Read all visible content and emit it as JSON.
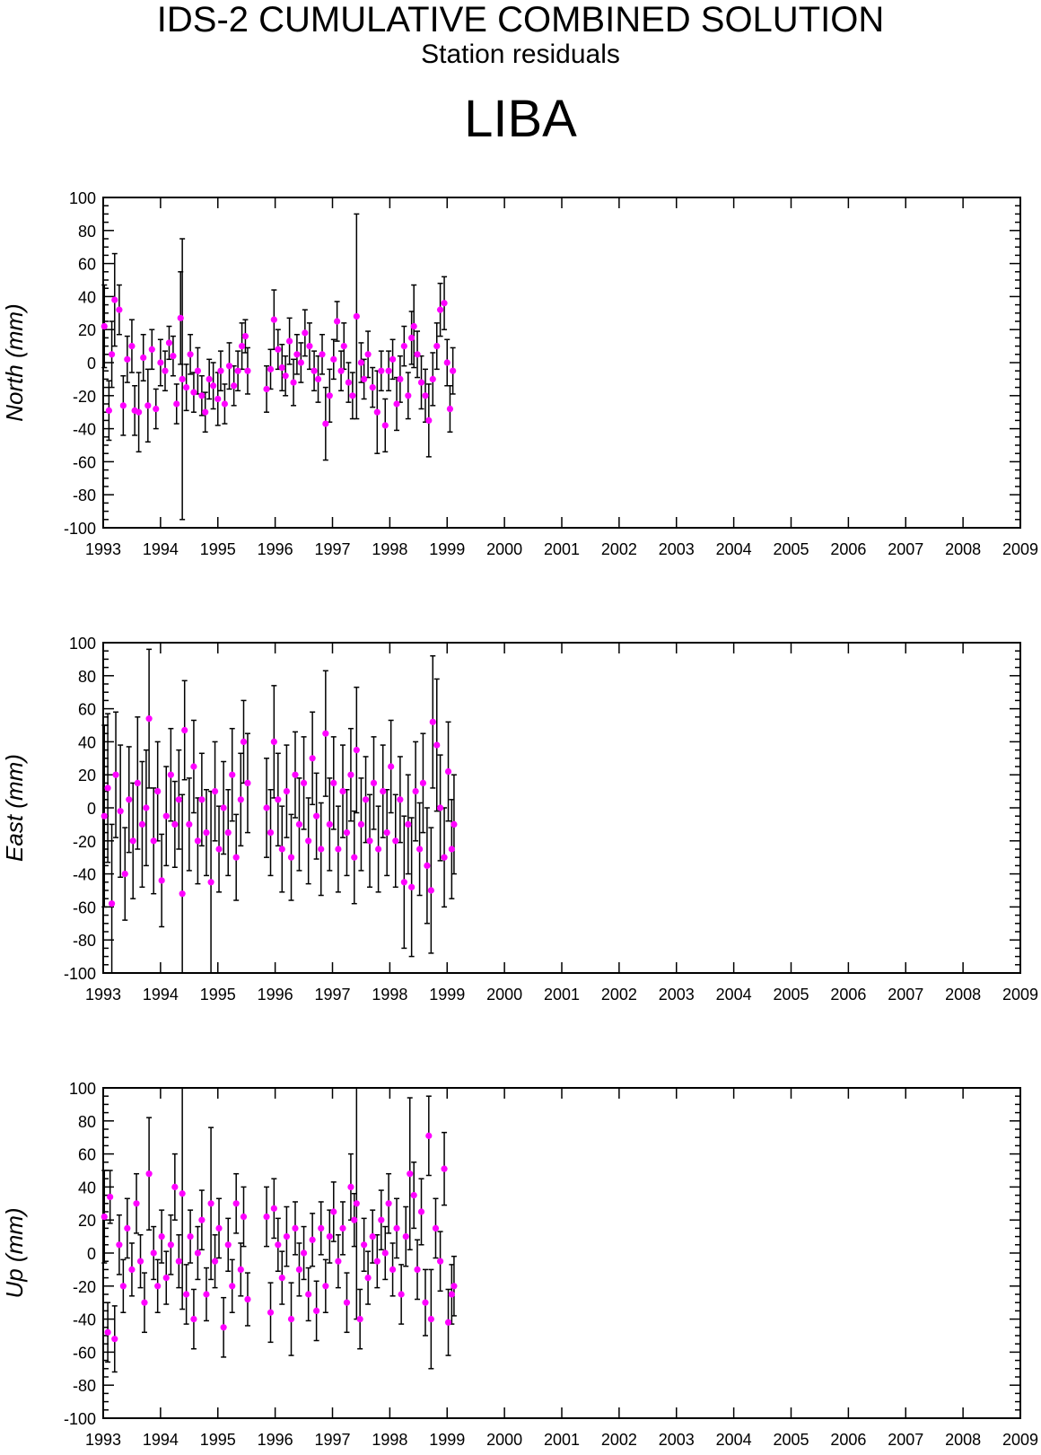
{
  "header": {
    "title": "IDS-2 CUMULATIVE COMBINED SOLUTION",
    "subtitle": "Station residuals",
    "station": "LIBA"
  },
  "colors": {
    "points": "#ff00ff",
    "error_bars": "#000000",
    "axes": "#000000"
  },
  "chart_data": [
    {
      "type": "scatter",
      "ylabel": "North (mm)",
      "xlim": [
        1993,
        2009
      ],
      "ylim": [
        -100,
        100
      ],
      "x_ticks": [
        "1993",
        "1994",
        "1995",
        "1996",
        "1997",
        "1998",
        "1999",
        "2000",
        "2001",
        "2002",
        "2003",
        "2004",
        "2005",
        "2006",
        "2007",
        "2008",
        "2009"
      ],
      "y_ticks": [
        "100",
        "80",
        "60",
        "40",
        "20",
        "0",
        "-20",
        "-40",
        "-60",
        "-80",
        "-100"
      ],
      "points": [
        [
          1993.02,
          22,
          25
        ],
        [
          1993.1,
          -29,
          18
        ],
        [
          1993.15,
          5,
          20
        ],
        [
          1993.2,
          38,
          28
        ],
        [
          1993.28,
          32,
          15
        ],
        [
          1993.35,
          -26,
          18
        ],
        [
          1993.42,
          2,
          14
        ],
        [
          1993.5,
          10,
          16
        ],
        [
          1993.55,
          -29,
          15
        ],
        [
          1993.62,
          -30,
          24
        ],
        [
          1993.7,
          3,
          14
        ],
        [
          1993.78,
          -26,
          22
        ],
        [
          1993.85,
          8,
          12
        ],
        [
          1993.92,
          -28,
          12
        ],
        [
          1994.0,
          0,
          14
        ],
        [
          1994.08,
          -5,
          12
        ],
        [
          1994.15,
          12,
          10
        ],
        [
          1994.22,
          4,
          12
        ],
        [
          1994.28,
          -25,
          12
        ],
        [
          1994.35,
          27,
          28
        ],
        [
          1994.38,
          -10,
          85
        ],
        [
          1994.45,
          -15,
          14
        ],
        [
          1994.52,
          5,
          12
        ],
        [
          1994.58,
          -18,
          12
        ],
        [
          1994.65,
          -5,
          14
        ],
        [
          1994.72,
          -20,
          12
        ],
        [
          1994.78,
          -30,
          12
        ],
        [
          1994.85,
          -10,
          12
        ],
        [
          1994.92,
          -14,
          14
        ],
        [
          1995.0,
          -22,
          16
        ],
        [
          1995.05,
          -5,
          12
        ],
        [
          1995.12,
          -25,
          12
        ],
        [
          1995.2,
          -2,
          14
        ],
        [
          1995.28,
          -14,
          12
        ],
        [
          1995.35,
          -5,
          12
        ],
        [
          1995.42,
          10,
          14
        ],
        [
          1995.48,
          16,
          10
        ],
        [
          1995.52,
          -5,
          14
        ],
        [
          1995.85,
          -16,
          14
        ],
        [
          1995.92,
          -4,
          12
        ],
        [
          1995.98,
          26,
          18
        ],
        [
          1996.05,
          8,
          12
        ],
        [
          1996.12,
          -3,
          14
        ],
        [
          1996.18,
          -8,
          12
        ],
        [
          1996.25,
          13,
          14
        ],
        [
          1996.32,
          -12,
          14
        ],
        [
          1996.38,
          5,
          12
        ],
        [
          1996.45,
          0,
          12
        ],
        [
          1996.52,
          18,
          14
        ],
        [
          1996.6,
          10,
          14
        ],
        [
          1996.68,
          -5,
          12
        ],
        [
          1996.75,
          -10,
          14
        ],
        [
          1996.82,
          5,
          12
        ],
        [
          1996.88,
          -37,
          22
        ],
        [
          1996.95,
          -20,
          16
        ],
        [
          1997.02,
          2,
          12
        ],
        [
          1997.08,
          25,
          12
        ],
        [
          1997.15,
          -5,
          12
        ],
        [
          1997.2,
          10,
          14
        ],
        [
          1997.28,
          -12,
          12
        ],
        [
          1997.35,
          -20,
          14
        ],
        [
          1997.42,
          28,
          62
        ],
        [
          1997.5,
          0,
          12
        ],
        [
          1997.55,
          -10,
          12
        ],
        [
          1997.62,
          5,
          14
        ],
        [
          1997.7,
          -15,
          12
        ],
        [
          1997.78,
          -30,
          25
        ],
        [
          1997.85,
          -5,
          12
        ],
        [
          1997.92,
          -38,
          16
        ],
        [
          1997.98,
          -5,
          12
        ],
        [
          1998.05,
          2,
          12
        ],
        [
          1998.12,
          -25,
          16
        ],
        [
          1998.18,
          -10,
          14
        ],
        [
          1998.25,
          10,
          12
        ],
        [
          1998.32,
          -20,
          14
        ],
        [
          1998.38,
          15,
          16
        ],
        [
          1998.42,
          22,
          25
        ],
        [
          1998.48,
          5,
          14
        ],
        [
          1998.55,
          -12,
          16
        ],
        [
          1998.62,
          -20,
          16
        ],
        [
          1998.68,
          -35,
          22
        ],
        [
          1998.75,
          -10,
          16
        ],
        [
          1998.82,
          10,
          14
        ],
        [
          1998.88,
          32,
          16
        ],
        [
          1998.95,
          36,
          16
        ],
        [
          1999.0,
          0,
          14
        ],
        [
          1999.05,
          -28,
          14
        ],
        [
          1999.1,
          -5,
          14
        ]
      ]
    },
    {
      "type": "scatter",
      "ylabel": "East (mm)",
      "xlim": [
        1993,
        2009
      ],
      "ylim": [
        -100,
        100
      ],
      "x_ticks": [
        "1993",
        "1994",
        "1995",
        "1996",
        "1997",
        "1998",
        "1999",
        "2000",
        "2001",
        "2002",
        "2003",
        "2004",
        "2005",
        "2006",
        "2007",
        "2008",
        "2009"
      ],
      "y_ticks": [
        "100",
        "80",
        "60",
        "40",
        "20",
        "0",
        "-20",
        "-40",
        "-60",
        "-80",
        "-100"
      ],
      "points": [
        [
          1993.02,
          -5,
          55
        ],
        [
          1993.08,
          12,
          45
        ],
        [
          1993.15,
          -58,
          48
        ],
        [
          1993.22,
          20,
          38
        ],
        [
          1993.3,
          -2,
          40
        ],
        [
          1993.38,
          -40,
          28
        ],
        [
          1993.45,
          5,
          32
        ],
        [
          1993.52,
          -20,
          35
        ],
        [
          1993.6,
          15,
          40
        ],
        [
          1993.68,
          -10,
          38
        ],
        [
          1993.75,
          0,
          35
        ],
        [
          1993.8,
          54,
          42
        ],
        [
          1993.88,
          -20,
          32
        ],
        [
          1993.95,
          10,
          30
        ],
        [
          1994.02,
          -44,
          28
        ],
        [
          1994.1,
          -5,
          30
        ],
        [
          1994.18,
          20,
          28
        ],
        [
          1994.25,
          -10,
          26
        ],
        [
          1994.32,
          5,
          30
        ],
        [
          1994.38,
          -52,
          60
        ],
        [
          1994.42,
          47,
          30
        ],
        [
          1994.5,
          -10,
          28
        ],
        [
          1994.58,
          25,
          28
        ],
        [
          1994.65,
          -20,
          26
        ],
        [
          1994.72,
          5,
          28
        ],
        [
          1994.8,
          -15,
          26
        ],
        [
          1994.88,
          -45,
          55
        ],
        [
          1994.95,
          10,
          30
        ],
        [
          1995.02,
          -25,
          26
        ],
        [
          1995.1,
          0,
          28
        ],
        [
          1995.18,
          -15,
          26
        ],
        [
          1995.25,
          20,
          28
        ],
        [
          1995.32,
          -30,
          26
        ],
        [
          1995.4,
          5,
          28
        ],
        [
          1995.45,
          40,
          25
        ],
        [
          1995.52,
          15,
          30
        ],
        [
          1995.85,
          0,
          30
        ],
        [
          1995.92,
          -15,
          26
        ],
        [
          1995.98,
          40,
          34
        ],
        [
          1996.05,
          5,
          28
        ],
        [
          1996.12,
          -25,
          26
        ],
        [
          1996.2,
          10,
          28
        ],
        [
          1996.28,
          -30,
          26
        ],
        [
          1996.35,
          20,
          26
        ],
        [
          1996.42,
          -10,
          28
        ],
        [
          1996.5,
          15,
          28
        ],
        [
          1996.58,
          -20,
          26
        ],
        [
          1996.65,
          30,
          28
        ],
        [
          1996.72,
          -5,
          26
        ],
        [
          1996.8,
          -25,
          28
        ],
        [
          1996.88,
          45,
          38
        ],
        [
          1996.95,
          -10,
          28
        ],
        [
          1997.02,
          15,
          28
        ],
        [
          1997.1,
          -25,
          26
        ],
        [
          1997.18,
          10,
          28
        ],
        [
          1997.25,
          -15,
          26
        ],
        [
          1997.32,
          20,
          28
        ],
        [
          1997.38,
          -30,
          28
        ],
        [
          1997.42,
          35,
          38
        ],
        [
          1997.5,
          -10,
          28
        ],
        [
          1997.58,
          5,
          26
        ],
        [
          1997.65,
          -20,
          28
        ],
        [
          1997.72,
          15,
          28
        ],
        [
          1997.8,
          -25,
          26
        ],
        [
          1997.88,
          10,
          28
        ],
        [
          1997.95,
          -15,
          26
        ],
        [
          1998.02,
          25,
          28
        ],
        [
          1998.1,
          -20,
          28
        ],
        [
          1998.18,
          5,
          26
        ],
        [
          1998.25,
          -45,
          40
        ],
        [
          1998.32,
          -10,
          30
        ],
        [
          1998.38,
          -48,
          42
        ],
        [
          1998.45,
          10,
          30
        ],
        [
          1998.52,
          -25,
          28
        ],
        [
          1998.58,
          15,
          30
        ],
        [
          1998.65,
          -35,
          35
        ],
        [
          1998.72,
          -50,
          38
        ],
        [
          1998.75,
          52,
          40
        ],
        [
          1998.82,
          38,
          40
        ],
        [
          1998.88,
          0,
          32
        ],
        [
          1998.95,
          -30,
          30
        ],
        [
          1999.02,
          22,
          30
        ],
        [
          1999.08,
          -25,
          30
        ],
        [
          1999.12,
          -10,
          30
        ]
      ]
    },
    {
      "type": "scatter",
      "ylabel": "Up (mm)",
      "xlim": [
        1993,
        2009
      ],
      "ylim": [
        -100,
        100
      ],
      "x_ticks": [
        "1993",
        "1994",
        "1995",
        "1996",
        "1997",
        "1998",
        "1999",
        "2000",
        "2001",
        "2002",
        "2003",
        "2004",
        "2005",
        "2006",
        "2007",
        "2008",
        "2009"
      ],
      "y_ticks": [
        "100",
        "80",
        "60",
        "40",
        "20",
        "0",
        "-20",
        "-40",
        "-60",
        "-80",
        "-100"
      ],
      "points": [
        [
          1993.02,
          22,
          28
        ],
        [
          1993.08,
          -48,
          18
        ],
        [
          1993.12,
          34,
          16
        ],
        [
          1993.2,
          -52,
          20
        ],
        [
          1993.28,
          5,
          18
        ],
        [
          1993.35,
          -20,
          16
        ],
        [
          1993.42,
          15,
          18
        ],
        [
          1993.5,
          -10,
          16
        ],
        [
          1993.58,
          30,
          18
        ],
        [
          1993.65,
          -5,
          16
        ],
        [
          1993.72,
          -30,
          18
        ],
        [
          1993.8,
          48,
          34
        ],
        [
          1993.88,
          0,
          16
        ],
        [
          1993.95,
          -20,
          16
        ],
        [
          1994.02,
          10,
          16
        ],
        [
          1994.1,
          -15,
          16
        ],
        [
          1994.18,
          5,
          18
        ],
        [
          1994.25,
          40,
          20
        ],
        [
          1994.32,
          -5,
          16
        ],
        [
          1994.38,
          36,
          70
        ],
        [
          1994.45,
          -25,
          18
        ],
        [
          1994.52,
          10,
          16
        ],
        [
          1994.58,
          -40,
          18
        ],
        [
          1994.65,
          0,
          16
        ],
        [
          1994.72,
          20,
          18
        ],
        [
          1994.8,
          -25,
          16
        ],
        [
          1994.88,
          30,
          46
        ],
        [
          1994.95,
          -5,
          16
        ],
        [
          1995.02,
          15,
          18
        ],
        [
          1995.1,
          -45,
          18
        ],
        [
          1995.18,
          5,
          16
        ],
        [
          1995.25,
          -20,
          16
        ],
        [
          1995.32,
          30,
          18
        ],
        [
          1995.4,
          -10,
          16
        ],
        [
          1995.45,
          22,
          18
        ],
        [
          1995.52,
          -28,
          16
        ],
        [
          1995.85,
          22,
          18
        ],
        [
          1995.92,
          -36,
          18
        ],
        [
          1995.98,
          27,
          18
        ],
        [
          1996.05,
          5,
          16
        ],
        [
          1996.12,
          -15,
          16
        ],
        [
          1996.2,
          10,
          18
        ],
        [
          1996.28,
          -40,
          22
        ],
        [
          1996.35,
          15,
          16
        ],
        [
          1996.42,
          -10,
          16
        ],
        [
          1996.5,
          0,
          16
        ],
        [
          1996.58,
          -25,
          16
        ],
        [
          1996.65,
          8,
          16
        ],
        [
          1996.72,
          -35,
          18
        ],
        [
          1996.8,
          15,
          16
        ],
        [
          1996.88,
          -20,
          16
        ],
        [
          1996.95,
          10,
          16
        ],
        [
          1997.02,
          25,
          18
        ],
        [
          1997.1,
          -5,
          16
        ],
        [
          1997.18,
          15,
          16
        ],
        [
          1997.25,
          -30,
          18
        ],
        [
          1997.32,
          40,
          20
        ],
        [
          1997.38,
          20,
          16
        ],
        [
          1997.42,
          30,
          70
        ],
        [
          1997.48,
          -40,
          18
        ],
        [
          1997.55,
          5,
          16
        ],
        [
          1997.62,
          -15,
          16
        ],
        [
          1997.7,
          10,
          16
        ],
        [
          1997.78,
          -5,
          16
        ],
        [
          1997.85,
          20,
          18
        ],
        [
          1997.92,
          0,
          16
        ],
        [
          1997.98,
          30,
          18
        ],
        [
          1998.05,
          -10,
          16
        ],
        [
          1998.12,
          15,
          18
        ],
        [
          1998.2,
          -25,
          18
        ],
        [
          1998.28,
          10,
          18
        ],
        [
          1998.35,
          48,
          46
        ],
        [
          1998.42,
          35,
          20
        ],
        [
          1998.48,
          -10,
          18
        ],
        [
          1998.55,
          25,
          20
        ],
        [
          1998.62,
          -30,
          20
        ],
        [
          1998.68,
          71,
          24
        ],
        [
          1998.72,
          -40,
          30
        ],
        [
          1998.8,
          15,
          18
        ],
        [
          1998.88,
          -5,
          18
        ],
        [
          1998.95,
          51,
          22
        ],
        [
          1999.02,
          -42,
          20
        ],
        [
          1999.08,
          -25,
          18
        ],
        [
          1999.12,
          -20,
          18
        ]
      ]
    }
  ]
}
